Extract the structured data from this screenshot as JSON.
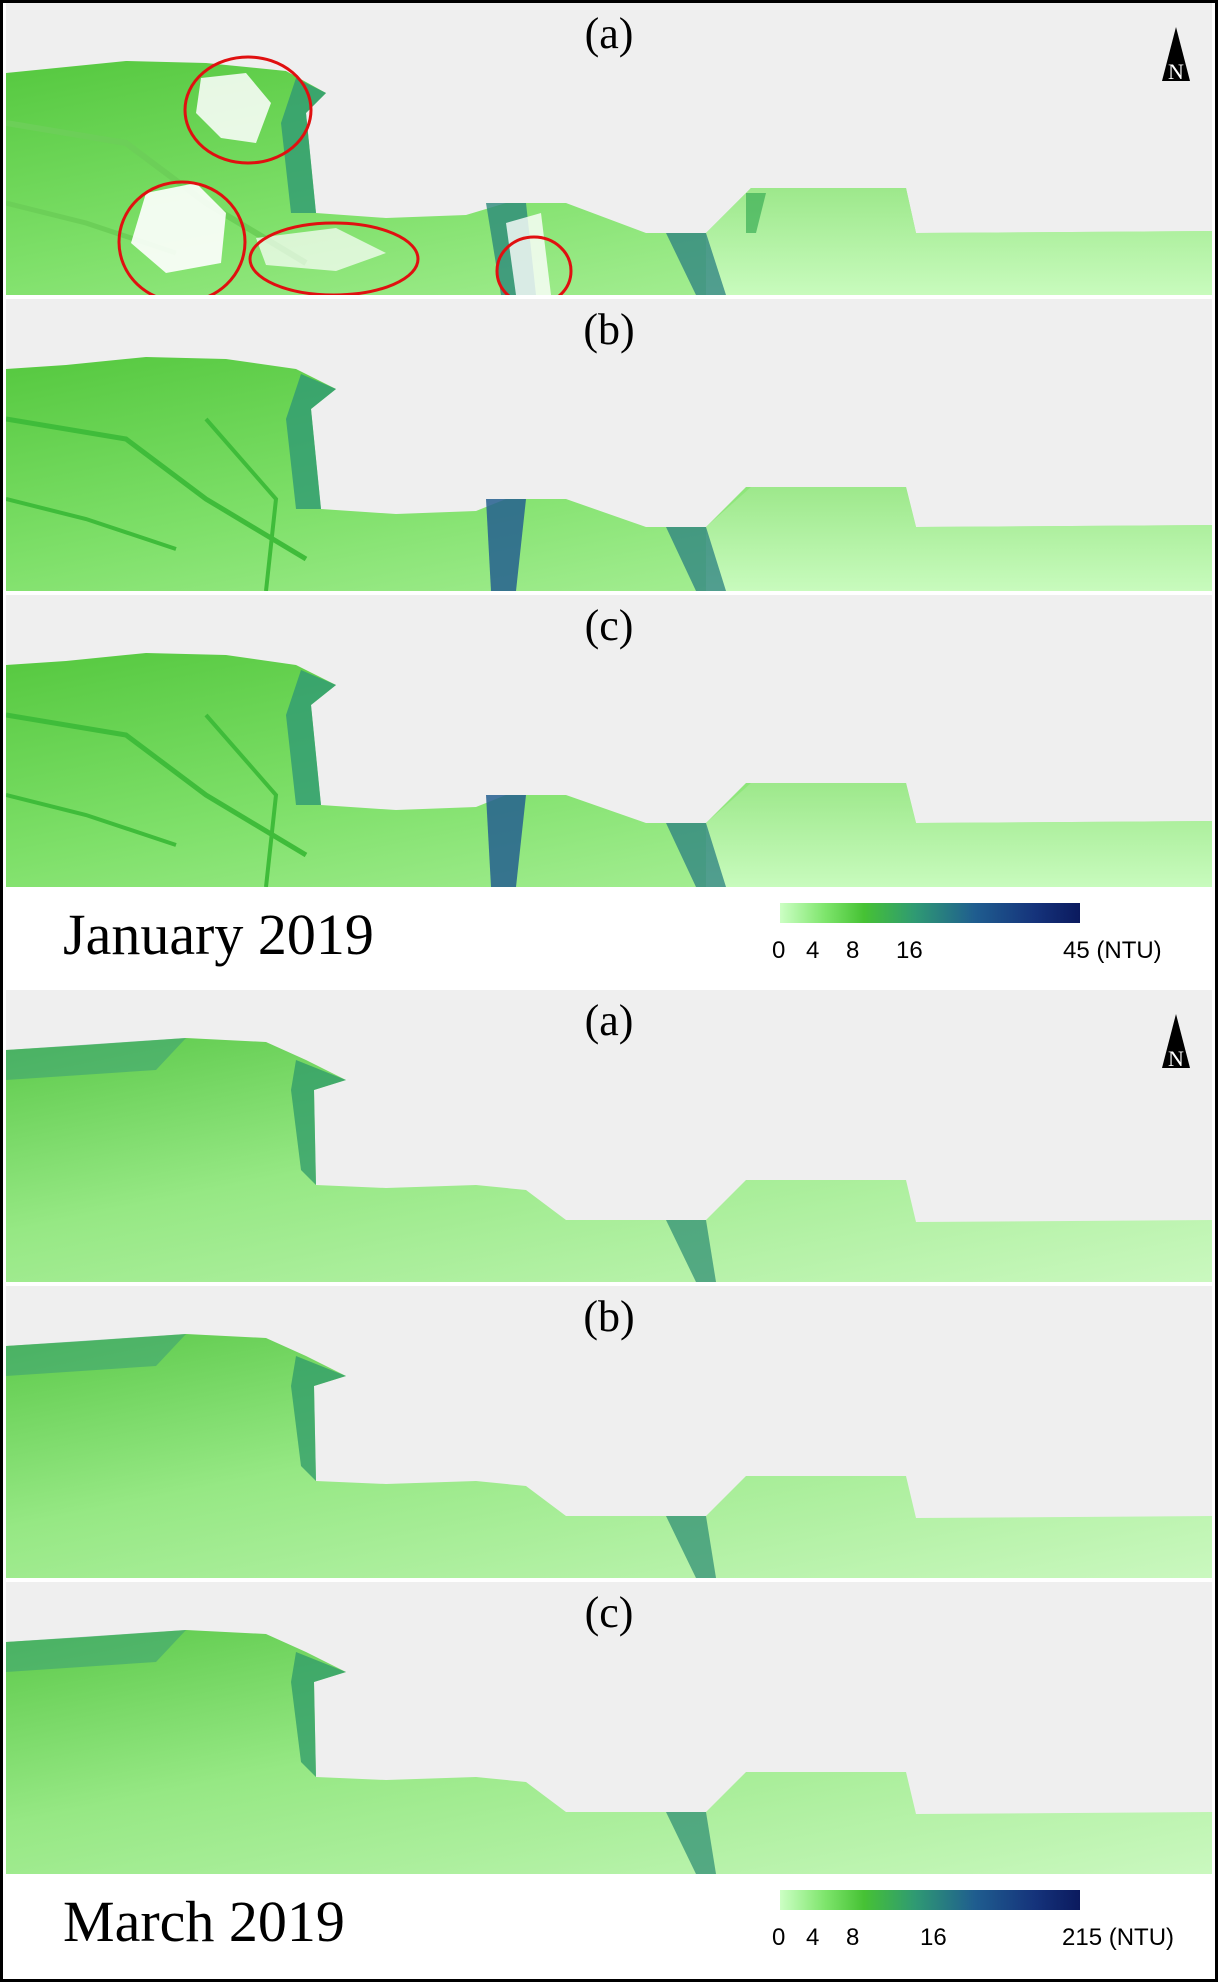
{
  "january": {
    "title": "January 2019",
    "panels": [
      {
        "label": "(a)"
      },
      {
        "label": "(b)"
      },
      {
        "label": "(c)"
      }
    ],
    "legend": {
      "ticks": [
        "0",
        "4",
        "8",
        "16",
        "45 (NTU)"
      ]
    },
    "north_label": "N"
  },
  "march": {
    "title": "March 2019",
    "panels": [
      {
        "label": "(a)"
      },
      {
        "label": "(b)"
      },
      {
        "label": "(c)"
      }
    ],
    "legend": {
      "ticks": [
        "0",
        "4",
        "8",
        "16",
        "215 (NTU)"
      ]
    },
    "north_label": "N"
  },
  "colors": {
    "background": "#efefef",
    "low_turbidity": "#ccffc4",
    "mid_turbidity": "#46c234",
    "high_turbidity": "#0b1a5e",
    "highlight_circle": "#e01010"
  }
}
